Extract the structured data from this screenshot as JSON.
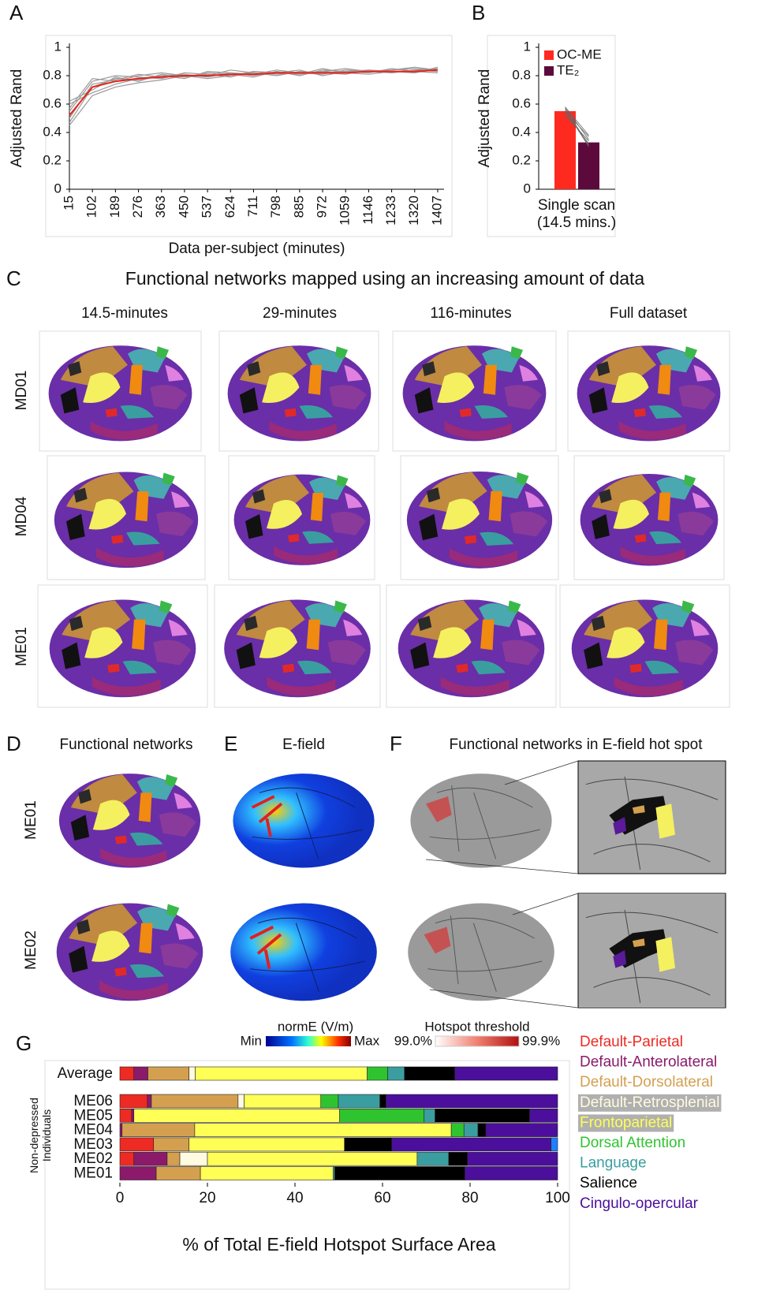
{
  "panel_labels": [
    "A",
    "B",
    "C",
    "D",
    "E",
    "F",
    "G"
  ],
  "chart_data": [
    {
      "type": "line",
      "ylabel": "Adjusted Rand",
      "xlabel": "Data per-subject (minutes)",
      "x": [
        15,
        102,
        189,
        276,
        363,
        450,
        537,
        624,
        711,
        798,
        885,
        972,
        1059,
        1146,
        1233,
        1320,
        1407
      ],
      "xlim": [
        15,
        1431
      ],
      "xticks": [
        15,
        102,
        189,
        276,
        363,
        450,
        537,
        624,
        711,
        798,
        885,
        972,
        1059,
        1146,
        1233,
        1320,
        1407
      ],
      "ylim": [
        0,
        1
      ],
      "yticks": [
        0,
        0.2,
        0.4,
        0.6,
        0.8,
        1
      ],
      "series": [
        {
          "color": "#9a9a9a",
          "values": [
            0.47,
            0.72,
            0.78,
            0.77,
            0.8,
            0.81,
            0.79,
            0.82,
            0.8,
            0.83,
            0.81,
            0.83,
            0.82,
            0.81,
            0.83,
            0.82,
            0.85
          ]
        },
        {
          "color": "#9a9a9a",
          "values": [
            0.55,
            0.76,
            0.8,
            0.79,
            0.78,
            0.82,
            0.81,
            0.8,
            0.83,
            0.82,
            0.84,
            0.8,
            0.83,
            0.84,
            0.82,
            0.84,
            0.83
          ]
        },
        {
          "color": "#9a9a9a",
          "values": [
            0.6,
            0.68,
            0.74,
            0.78,
            0.8,
            0.78,
            0.83,
            0.82,
            0.81,
            0.84,
            0.82,
            0.83,
            0.85,
            0.83,
            0.84,
            0.86,
            0.84
          ]
        },
        {
          "color": "#9a9a9a",
          "values": [
            0.5,
            0.74,
            0.77,
            0.81,
            0.79,
            0.8,
            0.8,
            0.84,
            0.82,
            0.8,
            0.83,
            0.82,
            0.81,
            0.84,
            0.83,
            0.82,
            0.86
          ]
        },
        {
          "color": "#9a9a9a",
          "values": [
            0.62,
            0.7,
            0.79,
            0.76,
            0.81,
            0.79,
            0.82,
            0.81,
            0.79,
            0.83,
            0.8,
            0.84,
            0.83,
            0.82,
            0.85,
            0.83,
            0.82
          ]
        },
        {
          "color": "#9a9a9a",
          "values": [
            0.45,
            0.66,
            0.72,
            0.75,
            0.77,
            0.8,
            0.78,
            0.8,
            0.82,
            0.81,
            0.82,
            0.81,
            0.84,
            0.83,
            0.84,
            0.85,
            0.84
          ]
        },
        {
          "color": "#9a9a9a",
          "values": [
            0.57,
            0.78,
            0.76,
            0.8,
            0.82,
            0.8,
            0.81,
            0.79,
            0.83,
            0.82,
            0.81,
            0.85,
            0.82,
            0.83,
            0.82,
            0.84,
            0.85
          ]
        },
        {
          "color": "#e8231c",
          "values": [
            0.52,
            0.72,
            0.76,
            0.78,
            0.79,
            0.8,
            0.8,
            0.81,
            0.81,
            0.82,
            0.82,
            0.82,
            0.82,
            0.83,
            0.83,
            0.83,
            0.84
          ]
        }
      ]
    },
    {
      "type": "bar",
      "ylabel": "Adjusted Rand",
      "categories": [
        "Single scan\n(14.5 mins.)"
      ],
      "ylim": [
        0,
        1
      ],
      "yticks": [
        0,
        0.2,
        0.4,
        0.6,
        0.8,
        1
      ],
      "legend": "upper-left",
      "series": [
        {
          "name": "OC-ME",
          "color": "#ff2a1f",
          "values": [
            0.55
          ]
        },
        {
          "name": "TE₂",
          "color": "#5c0a3c",
          "values": [
            0.33
          ]
        }
      ],
      "subject_lines": [
        [
          0.58,
          0.35
        ],
        [
          0.57,
          0.31
        ],
        [
          0.56,
          0.3
        ],
        [
          0.58,
          0.38
        ],
        [
          0.54,
          0.32
        ],
        [
          0.55,
          0.37
        ],
        [
          0.52,
          0.34
        ]
      ],
      "subject_color": "#666666"
    },
    {
      "type": "stacked-bar-horizontal",
      "xlabel": "% of Total E-field Hotspot Surface Area",
      "ylabel": "Non-depressed\nIndividuals",
      "categories": [
        "Average",
        "ME06",
        "ME05",
        "ME04",
        "ME03",
        "ME02",
        "ME01"
      ],
      "xlim": [
        0,
        100
      ],
      "xticks": [
        0,
        20,
        40,
        60,
        80,
        100
      ],
      "legend": "right",
      "series": [
        {
          "name": "Default-Parietal",
          "color": "#ee2a24",
          "values": [
            3.2,
            6.3,
            2.7,
            0,
            7.7,
            3.2,
            0
          ]
        },
        {
          "name": "Default-Anterolateral",
          "color": "#8b1a6b",
          "values": [
            3.2,
            0.9,
            0.5,
            0.5,
            0,
            7.6,
            8.3
          ]
        },
        {
          "name": "Default-Dorsolateral",
          "color": "#d4a050",
          "values": [
            9.4,
            19.8,
            0,
            16.6,
            8.1,
            2.9,
            10.1
          ]
        },
        {
          "name": "Default-Retrosplenial",
          "color": "#fffbe0",
          "values": [
            1.4,
            1.4,
            0,
            0,
            0,
            6.3,
            0
          ]
        },
        {
          "name": "Frontoparietal",
          "color": "#ffff55",
          "values": [
            39.3,
            17.5,
            47,
            58.6,
            35.5,
            47.9,
            30.3
          ]
        },
        {
          "name": "Dorsal Attention",
          "color": "#2fc42f",
          "values": [
            4.7,
            4,
            19.3,
            2.9,
            0,
            0,
            0
          ]
        },
        {
          "name": "Language",
          "color": "#3a9ea0",
          "values": [
            3.8,
            9.5,
            2.5,
            3.2,
            0,
            7.2,
            0.4
          ]
        },
        {
          "name": "Salience",
          "color": "#000000",
          "values": [
            11.5,
            1.4,
            21.6,
            1.8,
            10.8,
            4.3,
            29.7
          ]
        },
        {
          "name": "Cingulo-opercular",
          "color": "#4b0f9c",
          "values": [
            23.5,
            39.2,
            6.4,
            16.4,
            36.4,
            20.6,
            21.2
          ]
        },
        {
          "color": "#1e7fff",
          "values": [
            0,
            0,
            0,
            0,
            1.5,
            0,
            0
          ]
        }
      ]
    }
  ],
  "network_maps": {
    "title": "Functional networks mapped using an increasing amount of data",
    "columns": [
      "14.5-minutes",
      "29-minutes",
      "116-minutes",
      "Full dataset"
    ],
    "rows": [
      "MD01",
      "MD04",
      "ME01"
    ]
  },
  "hotspot": {
    "titles": [
      "Functional networks",
      "E-field",
      "Functional networks in E-field hot spot"
    ],
    "rows": [
      "ME01",
      "ME02"
    ],
    "efield_scale": {
      "title": "normE (V/m)",
      "min": "Min",
      "max": "Max"
    },
    "threshold_scale": {
      "title": "Hotspot threshold",
      "min": "99.0%",
      "max": "99.9%"
    }
  }
}
